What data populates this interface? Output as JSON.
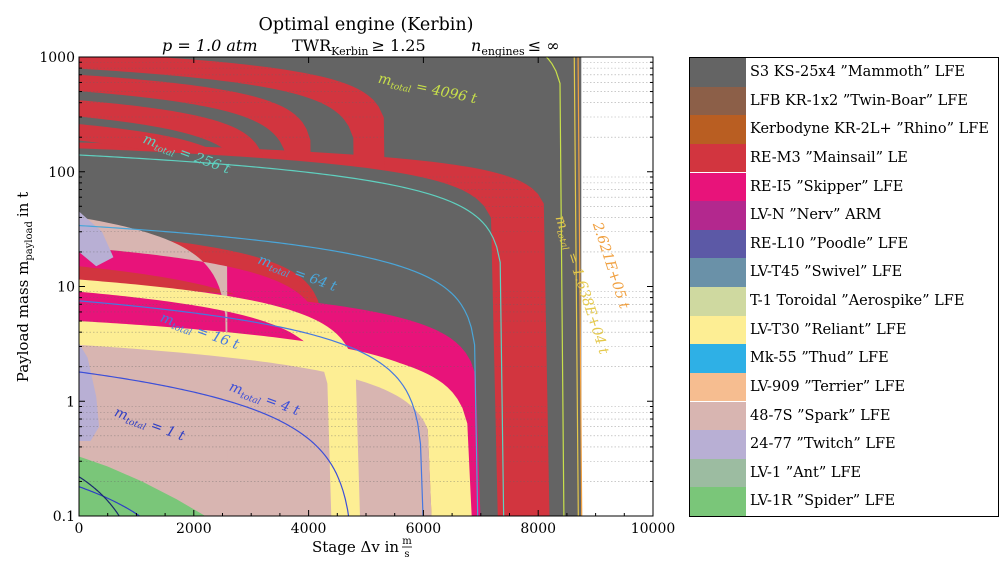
{
  "chart_data": {
    "type": "area",
    "title": "Optimal engine (Kerbin)",
    "subtitle": {
      "pressure": "p = 1.0 atm",
      "twr": "TWR",
      "twr_sub": "Kerbin",
      "twr_rel": "≥ 1.25",
      "engines": "n",
      "engines_sub": "engines",
      "engines_rel": "≤ ∞"
    },
    "xlabel": "Stage Δv in",
    "xlabel_unit_num": "m",
    "xlabel_unit_den": "s",
    "ylabel": "Payload mass m",
    "ylabel_sub": "payload",
    "ylabel_unit": "in t",
    "xlim": [
      0,
      10000
    ],
    "ylim": [
      0.1,
      1000
    ],
    "yscale": "log",
    "x_ticks": [
      0,
      2000,
      4000,
      6000,
      8000,
      10000
    ],
    "x_tick_labels": [
      "0",
      "2000",
      "4000",
      "6000",
      "8000",
      "10000"
    ],
    "y_ticks": [
      0.1,
      1,
      10,
      100,
      1000
    ],
    "y_tick_labels": [
      "0.1",
      "1",
      "10",
      "100",
      "1000"
    ],
    "grid": "dotted horizontal lines at minor log ticks",
    "legend_position": "right",
    "engines": [
      {
        "name": "S3 KS-25x4 ”Mammoth” LFE",
        "color": "#646464"
      },
      {
        "name": "LFB KR-1x2 ”Twin-Boar” LFE",
        "color": "#8c5f48"
      },
      {
        "name": "Kerbodyne KR-2L+ ”Rhino” LFE",
        "color": "#b95e22"
      },
      {
        "name": "RE-M3 ”Mainsail” LE",
        "color": "#d2353f"
      },
      {
        "name": "RE-I5 ”Skipper” LFE",
        "color": "#e8137a"
      },
      {
        "name": "LV-N ”Nerv” ARM",
        "color": "#b3288e"
      },
      {
        "name": "RE-L10 ”Poodle” LFE",
        "color": "#5c59a6"
      },
      {
        "name": "LV-T45 ”Swivel” LFE",
        "color": "#6a91a8"
      },
      {
        "name": "T-1 Toroidal ”Aerospike” LFE",
        "color": "#cfd9a0"
      },
      {
        "name": "LV-T30 ”Reliant” LFE",
        "color": "#fdee94"
      },
      {
        "name": "Mk-55 ”Thud” LFE",
        "color": "#2eb0e6"
      },
      {
        "name": "LV-909 ”Terrier” LFE",
        "color": "#f6bd90"
      },
      {
        "name": "48-7S ”Spark” LFE",
        "color": "#d8b5b1"
      },
      {
        "name": "24-77 ”Twitch” LFE",
        "color": "#b8afd4"
      },
      {
        "name": "LV-1 ”Ant” LFE",
        "color": "#9cbca1"
      },
      {
        "name": "LV-1R ”Spider” LFE",
        "color": "#7ac679"
      }
    ],
    "regions": [
      {
        "engine": "S3 KS-25x4 ”Mammoth” LFE",
        "description": "background, upper right",
        "max_dv": 8750
      },
      {
        "engine": "RE-M3 ”Mainsail” LE",
        "main_band_max_dv": 8200
      },
      {
        "engine": "RE-I5 ”Skipper” LFE",
        "band_max_dv": 7000
      },
      {
        "engine": "LV-T30 ”Reliant” LFE",
        "band_max_dv": 6800
      },
      {
        "engine": "48-7S ”Spark” LFE",
        "description": "lower left region"
      },
      {
        "engine": "24-77 ”Twitch” LFE",
        "description": "small patches near Δv≈0–500"
      },
      {
        "engine": "LV-1R ”Spider” LFE",
        "description": "bottom left corner, payload < 0.4 t"
      }
    ],
    "contours": [
      {
        "label": "m",
        "label_sub": "total",
        "label_rest": " = 1 t",
        "color": "#2f3fc4",
        "label_dv": 600,
        "label_m": 0.75
      },
      {
        "label": "m",
        "label_sub": "total",
        "label_rest": " = 4 t",
        "color": "#3c4fd8",
        "label_dv": 2600,
        "label_m": 1.25
      },
      {
        "label": "m",
        "label_sub": "total",
        "label_rest": " = 16 t",
        "color": "#4678e0",
        "label_dv": 1400,
        "label_m": 5
      },
      {
        "label": "m",
        "label_sub": "total",
        "label_rest": " = 64 t",
        "color": "#4aa6d9",
        "label_dv": 3100,
        "label_m": 16
      },
      {
        "label": "m",
        "label_sub": "total",
        "label_rest": " = 256 t",
        "color": "#5fd1c0",
        "label_dv": 1100,
        "label_m": 180
      },
      {
        "label": "m",
        "label_sub": "total",
        "label_rest": " = 4096 t",
        "color": "#c8e04a",
        "label_dv": 5200,
        "label_m": 600
      },
      {
        "label": "m",
        "label_sub": "total",
        "label_rest": " = 1.638E+04 t",
        "color": "#e4c84a",
        "label_dv": 8300,
        "label_m": 40
      },
      {
        "label": "",
        "label_sub": "",
        "label_rest": "2.621E+05 t",
        "color": "#f0a040",
        "label_dv": 8950,
        "label_m": 35
      }
    ]
  }
}
